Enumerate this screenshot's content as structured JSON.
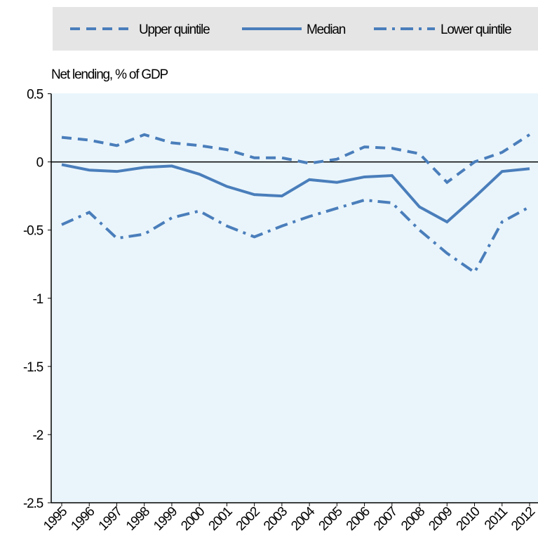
{
  "chart_data": {
    "type": "line",
    "y_label": "Net lending, % of GDP",
    "categories": [
      "1995",
      "1996",
      "1997",
      "1998",
      "1999",
      "2000",
      "2001",
      "2002",
      "2003",
      "2004",
      "2005",
      "2006",
      "2007",
      "2008",
      "2009",
      "2010",
      "2011",
      "2012"
    ],
    "series": [
      {
        "name": "Upper quintile",
        "color": "#4a7ebb",
        "dash": "dashed",
        "values": [
          0.18,
          0.16,
          0.12,
          0.2,
          0.14,
          0.12,
          0.09,
          0.03,
          0.03,
          -0.01,
          0.02,
          0.11,
          0.1,
          0.06,
          -0.15,
          0.0,
          0.07,
          0.2
        ]
      },
      {
        "name": "Median",
        "color": "#4a7ebb",
        "dash": "solid",
        "values": [
          -0.02,
          -0.06,
          -0.07,
          -0.04,
          -0.03,
          -0.09,
          -0.18,
          -0.24,
          -0.25,
          -0.13,
          -0.15,
          -0.11,
          -0.1,
          -0.33,
          -0.44,
          -0.26,
          -0.07,
          -0.05
        ]
      },
      {
        "name": "Lower quintile",
        "color": "#4a7ebb",
        "dash": "dashdot",
        "values": [
          -0.46,
          -0.37,
          -0.56,
          -0.53,
          -0.41,
          -0.36,
          -0.47,
          -0.55,
          -0.47,
          -0.4,
          -0.34,
          -0.28,
          -0.3,
          -0.5,
          -0.67,
          -0.81,
          -0.44,
          -0.33
        ]
      }
    ],
    "ylim": [
      -2.5,
      0.5
    ],
    "yticks": [
      0.5,
      0,
      -0.5,
      -1,
      -1.5,
      -2,
      -2.5
    ],
    "legend": "top"
  }
}
